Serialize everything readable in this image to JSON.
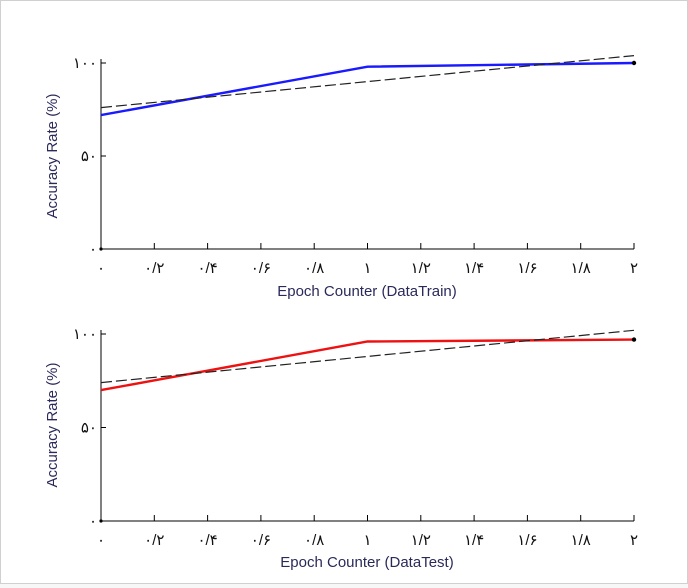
{
  "chart_data": [
    {
      "type": "line",
      "xlabel": "Epoch Counter (DataTrain)",
      "ylabel": "Accuracy Rate (%)",
      "xlim": [
        0,
        2
      ],
      "ylim": [
        0,
        100
      ],
      "x_ticks": [
        0,
        0.2,
        0.4,
        0.6,
        0.8,
        1,
        1.2,
        1.4,
        1.6,
        1.8,
        2
      ],
      "x_tick_labels": [
        "٠",
        "٠/٢",
        "٠/۴",
        "٠/۶",
        "٠/٨",
        "١",
        "١/٢",
        "١/۴",
        "١/۶",
        "١/٨",
        "٢"
      ],
      "y_ticks": [
        0,
        50,
        100
      ],
      "y_tick_labels": [
        "٠",
        "۵٠",
        "١٠٠"
      ],
      "grid": false,
      "series": [
        {
          "color": "#1a1aff",
          "style": "solid",
          "x": [
            0,
            1,
            2
          ],
          "y": [
            72,
            98,
            100
          ]
        },
        {
          "color": "#222222",
          "style": "dashed",
          "x": [
            0,
            2
          ],
          "y": [
            76,
            104
          ]
        }
      ]
    },
    {
      "type": "line",
      "xlabel": "Epoch Counter (DataTest)",
      "ylabel": "Accuracy Rate (%)",
      "xlim": [
        0,
        2
      ],
      "ylim": [
        0,
        100
      ],
      "x_ticks": [
        0,
        0.2,
        0.4,
        0.6,
        0.8,
        1,
        1.2,
        1.4,
        1.6,
        1.8,
        2
      ],
      "x_tick_labels": [
        "٠",
        "٠/٢",
        "٠/۴",
        "٠/۶",
        "٠/٨",
        "١",
        "١/٢",
        "١/۴",
        "١/۶",
        "١/٨",
        "٢"
      ],
      "y_ticks": [
        0,
        50,
        100
      ],
      "y_tick_labels": [
        "٠",
        "۵٠",
        "١٠٠"
      ],
      "grid": false,
      "series": [
        {
          "color": "#ee1111",
          "style": "solid",
          "x": [
            0,
            1,
            2
          ],
          "y": [
            70,
            96,
            97
          ]
        },
        {
          "color": "#222222",
          "style": "dashed",
          "x": [
            0,
            2
          ],
          "y": [
            74,
            102
          ]
        }
      ]
    }
  ]
}
